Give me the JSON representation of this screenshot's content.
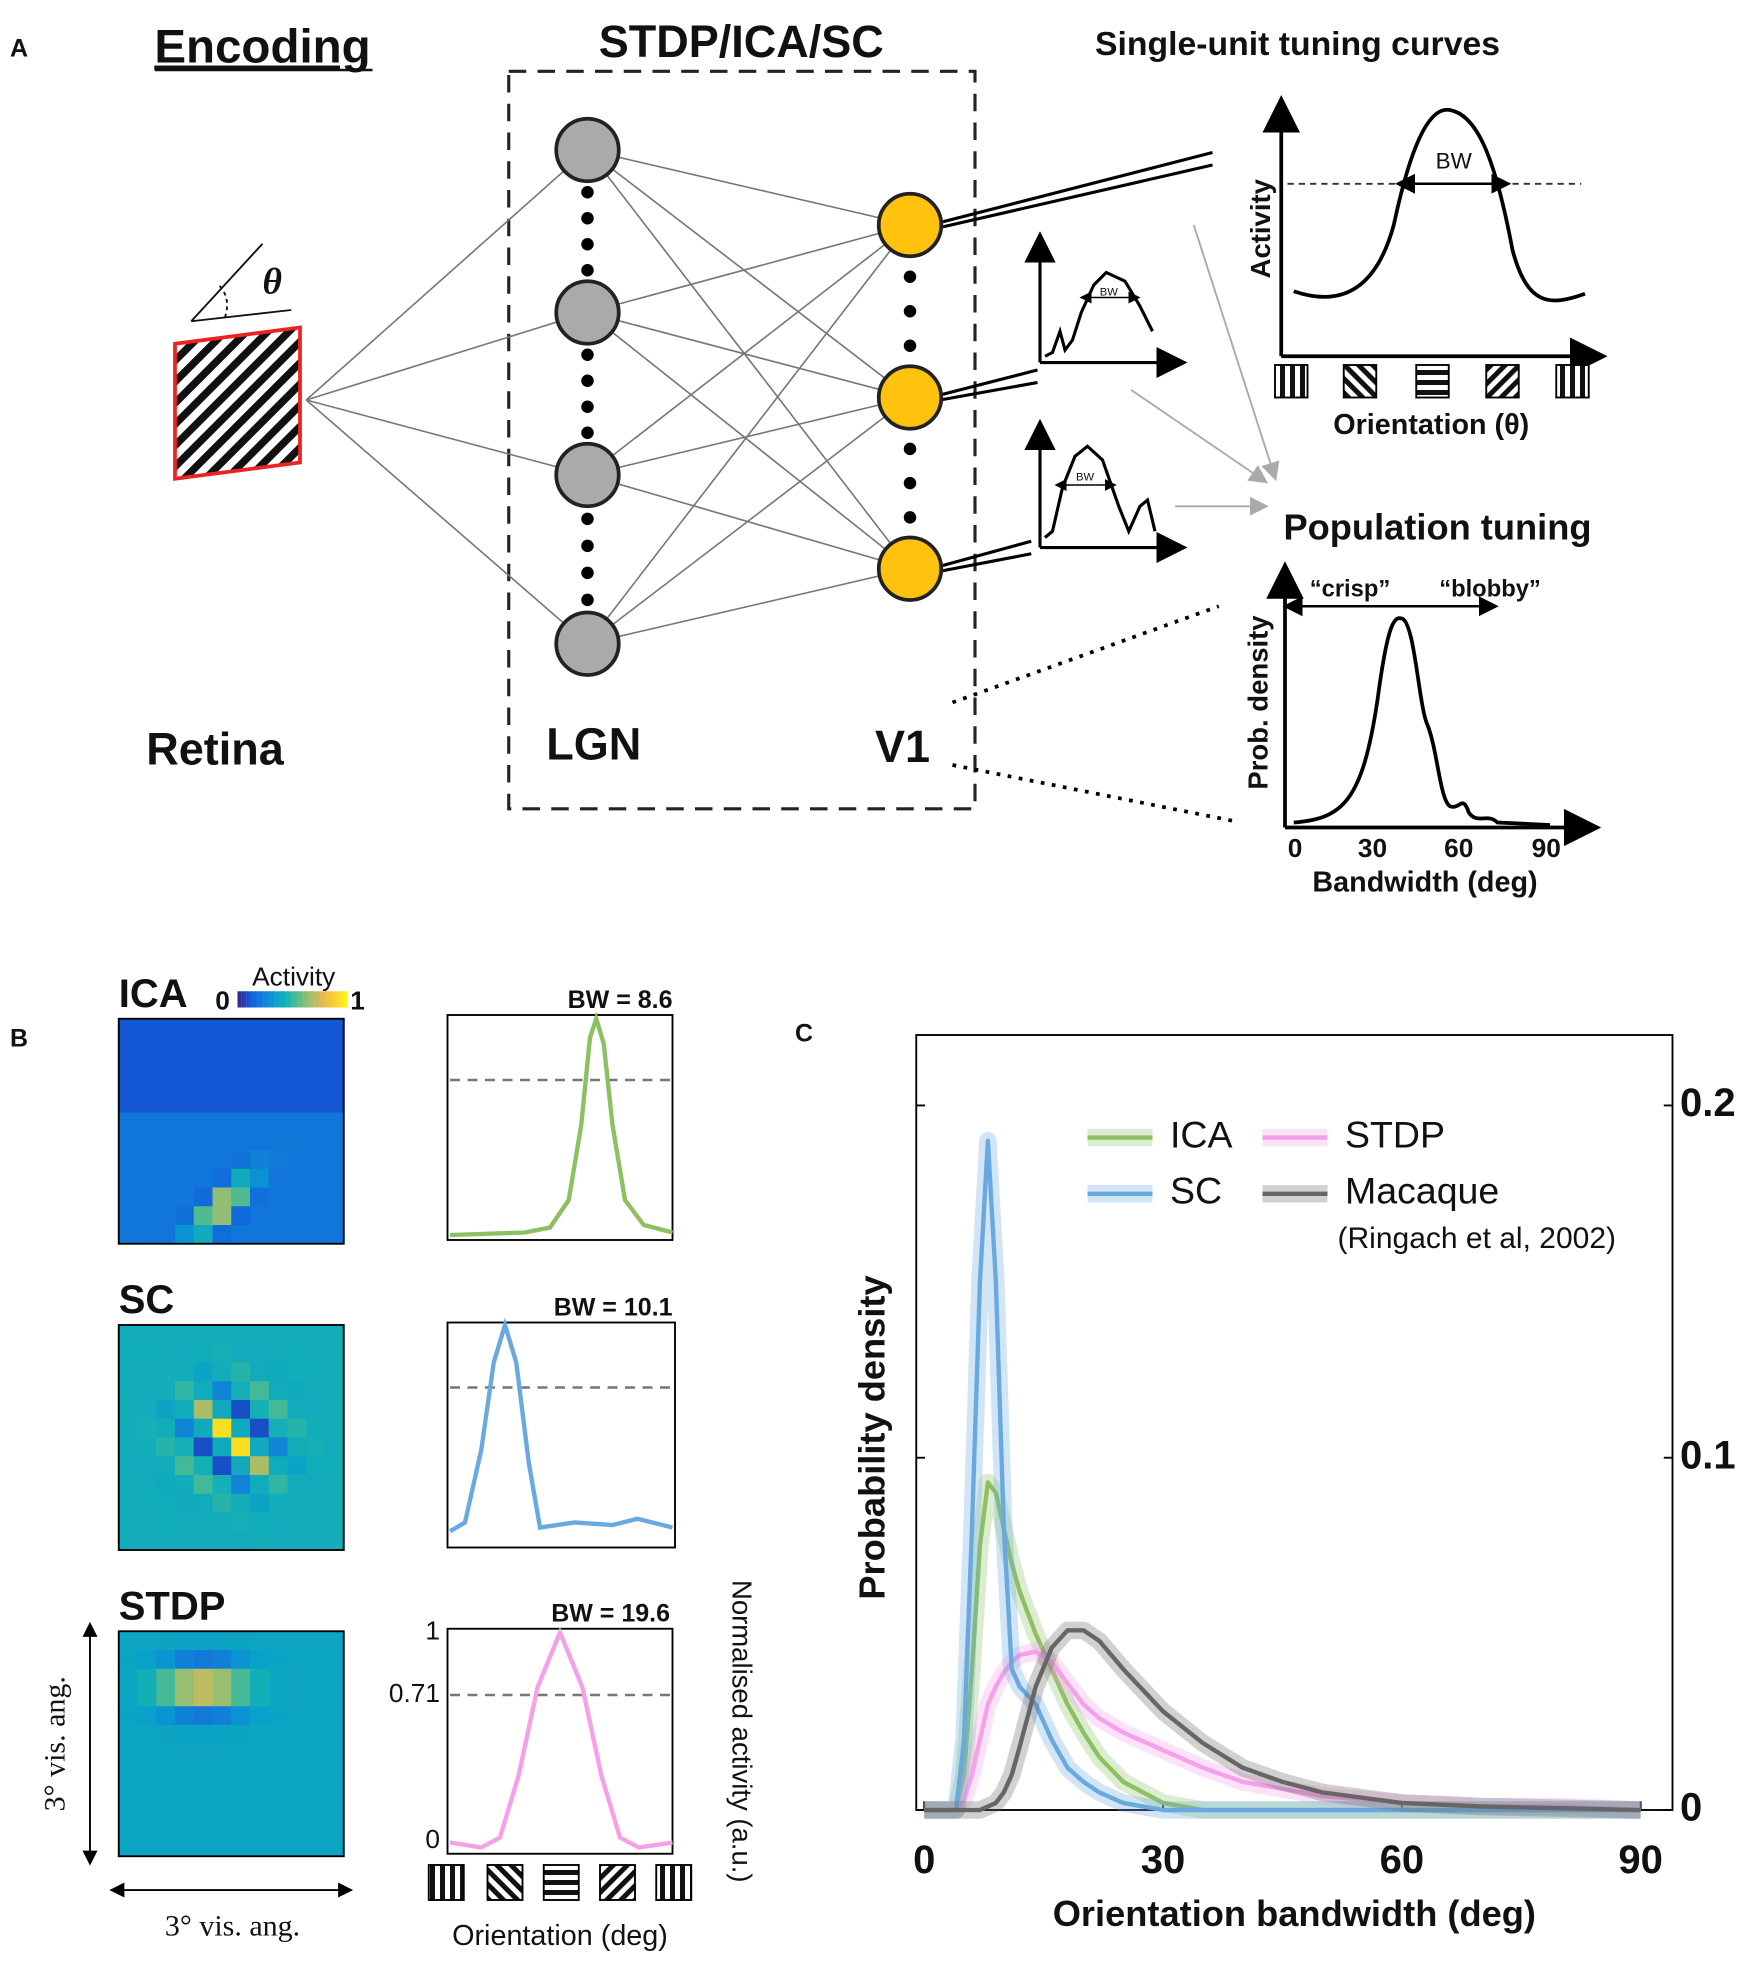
{
  "panel_labels": [
    "A",
    "B",
    "C"
  ],
  "panel_a": {
    "encoding": "Encoding",
    "theta": "θ",
    "retina": "Retina",
    "model": "STDP/ICA/SC",
    "lgn": "LGN",
    "v1": "V1",
    "single_unit": "Single-unit tuning curves",
    "activity": "Activity",
    "bw": "BW",
    "orientation": "Orientation (θ)",
    "population": "Population tuning",
    "crisp": "“crisp”",
    "blobby": "“blobby”",
    "prob_density": "Prob. density",
    "bandwidth": "Bandwidth (deg)",
    "bandwidth_ticks": [
      0,
      30,
      60,
      90
    ]
  },
  "panel_b": {
    "colorbar_title": "Activity",
    "colorbar_min": 0,
    "colorbar_max": 1,
    "rows": [
      {
        "name": "ICA",
        "bw": "BW = 8.6"
      },
      {
        "name": "SC",
        "bw": "BW = 10.1"
      },
      {
        "name": "STDP",
        "bw": "BW = 19.6"
      }
    ],
    "yticks": [
      1,
      0.71,
      0
    ],
    "ylabel": "Normalised activity (a.u.)",
    "xlabel": "Orientation (deg)",
    "vis_angle_y": "3° vis. ang.",
    "vis_angle_x": "3° vis. ang."
  },
  "chart_data": {
    "type": "line",
    "xlabel": "Orientation bandwidth (deg)",
    "ylabel": "Probability density",
    "annotation": "(Ringach et al, 2002)",
    "x": [
      0,
      2,
      4,
      5,
      6,
      7,
      8,
      9,
      10,
      11,
      12,
      14,
      16,
      18,
      20,
      22,
      25,
      30,
      35,
      40,
      45,
      50,
      60,
      70,
      80,
      90
    ],
    "series": [
      {
        "name": "ICA",
        "color": "#8cc063",
        "values": [
          0,
          0,
          0,
          0.01,
          0.04,
          0.075,
          0.093,
          0.09,
          0.08,
          0.07,
          0.062,
          0.05,
          0.04,
          0.03,
          0.022,
          0.015,
          0.008,
          0.002,
          0,
          0,
          0,
          0,
          0,
          0,
          0,
          0
        ]
      },
      {
        "name": "STDP",
        "color": "#f5a0e8",
        "values": [
          0,
          0,
          0,
          0.003,
          0.01,
          0.02,
          0.03,
          0.035,
          0.039,
          0.042,
          0.044,
          0.045,
          0.042,
          0.036,
          0.03,
          0.026,
          0.022,
          0.017,
          0.012,
          0.008,
          0.006,
          0.004,
          0.002,
          0.001,
          0.001,
          0
        ]
      },
      {
        "name": "SC",
        "color": "#6aa9e0",
        "values": [
          0,
          0,
          0,
          0.02,
          0.08,
          0.15,
          0.19,
          0.15,
          0.08,
          0.04,
          0.035,
          0.03,
          0.02,
          0.012,
          0.008,
          0.005,
          0.002,
          0,
          0,
          0,
          0,
          0,
          0,
          0,
          0,
          0
        ]
      },
      {
        "name": "Macaque",
        "color": "#666666",
        "values": [
          0,
          0,
          0,
          0,
          0,
          0,
          0.001,
          0.002,
          0.005,
          0.01,
          0.018,
          0.035,
          0.046,
          0.051,
          0.051,
          0.048,
          0.04,
          0.028,
          0.019,
          0.012,
          0.008,
          0.005,
          0.002,
          0.001,
          0.0005,
          0
        ]
      }
    ],
    "xlim": [
      -1,
      94
    ],
    "ylim": [
      0,
      0.22
    ],
    "xticks": [
      0,
      30,
      60,
      90
    ],
    "yticks": [
      0,
      0.1,
      0.2
    ],
    "legend": "upper right"
  }
}
